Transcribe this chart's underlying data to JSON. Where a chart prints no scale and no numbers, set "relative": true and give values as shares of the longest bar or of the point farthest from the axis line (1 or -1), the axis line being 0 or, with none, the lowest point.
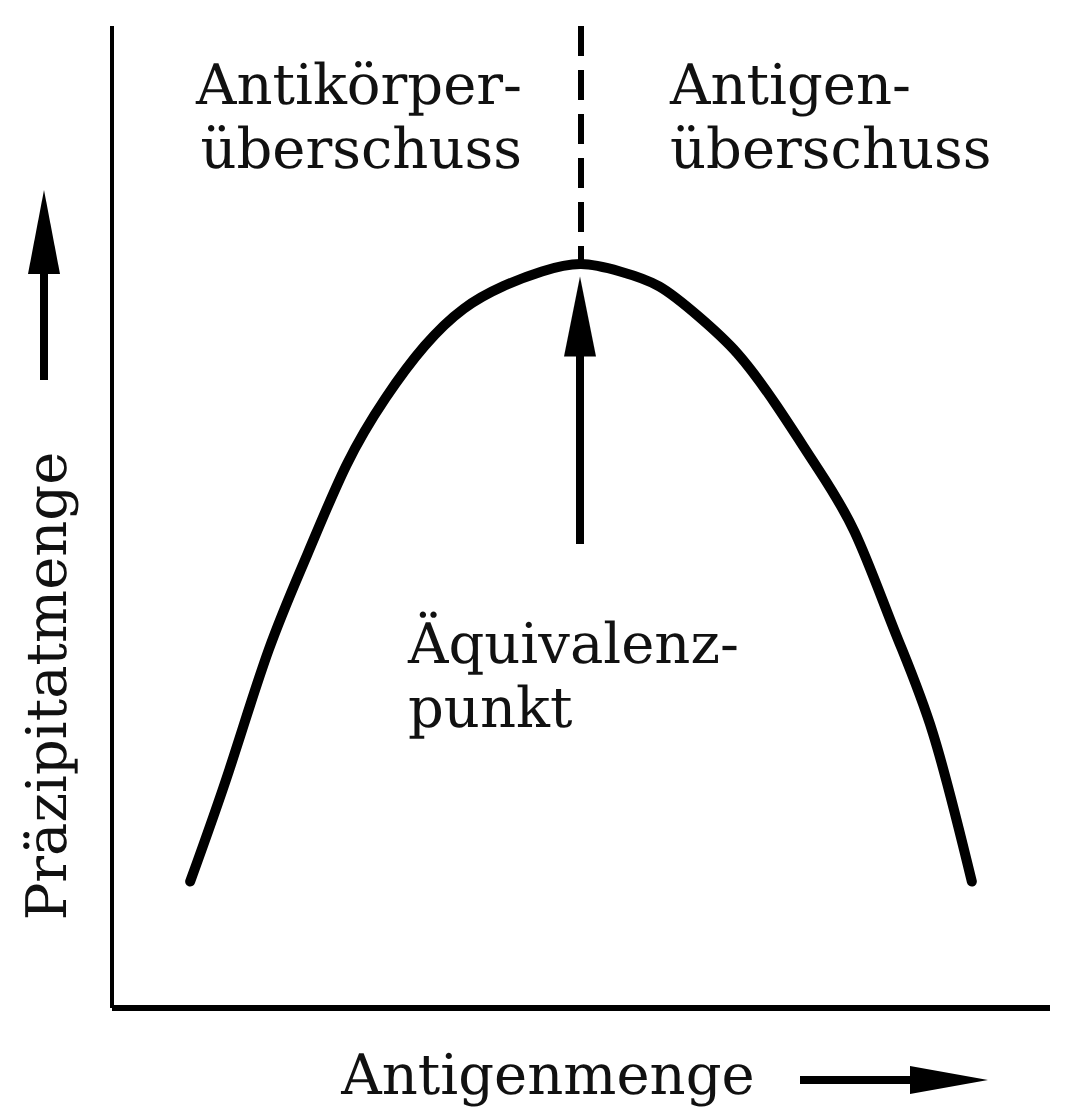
{
  "chart_data": {
    "type": "line",
    "relative": true,
    "xlabel": "Antigenmenge",
    "ylabel": "Präzipitatmenge",
    "categories": [
      null,
      null,
      null,
      null,
      null,
      null,
      null,
      null,
      null,
      null,
      null,
      null,
      null,
      null,
      null,
      null,
      null,
      null,
      null,
      null,
      null,
      null,
      null,
      null,
      null
    ],
    "series": [
      {
        "color": "#000000",
        "values": [
          null,
          null,
          0.17,
          0.32,
          0.48,
          0.61,
          0.73,
          0.82,
          0.89,
          0.94,
          0.97,
          0.99,
          1,
          0.99,
          0.97,
          0.93,
          0.88,
          0.81,
          0.73,
          0.64,
          0.51,
          0.37,
          0.17,
          null,
          null
        ]
      }
    ],
    "annotations": [
      "Antikörper-\nüberschuss",
      "Antigen-\nüberschuss",
      "Äquivalenz-\npunkt"
    ]
  }
}
